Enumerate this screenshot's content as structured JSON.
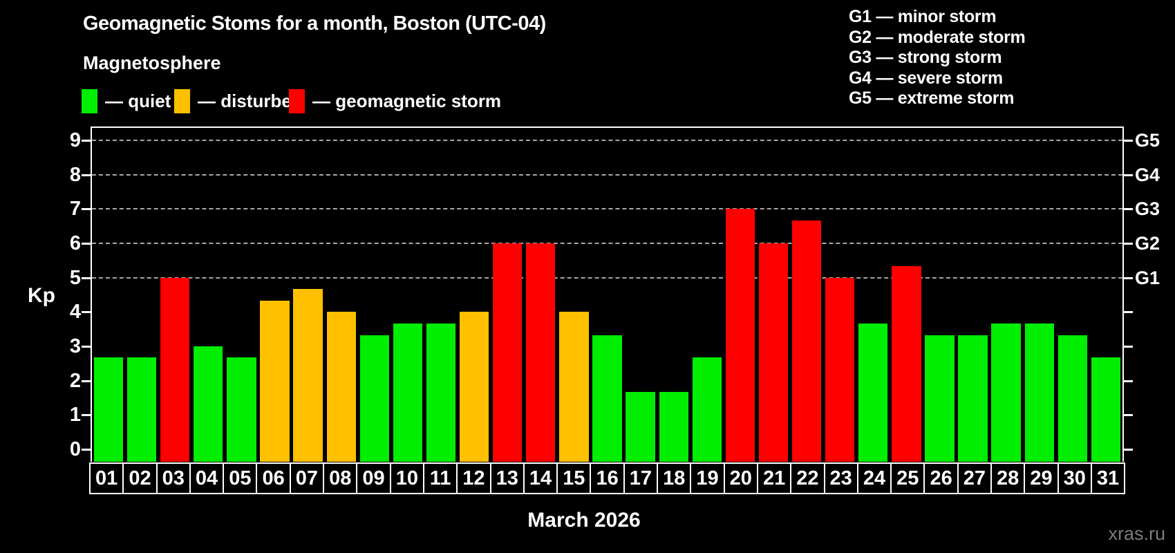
{
  "header": {
    "title": "Geomagnetic Stoms for a month, Boston (UTC-04)",
    "subtitle": "Magnetosphere",
    "legend": [
      {
        "label": "— quiet",
        "state": "quiet"
      },
      {
        "label": "— disturbed",
        "state": "disturbed"
      },
      {
        "label": "— geomagnetic storm",
        "state": "storm"
      }
    ],
    "storm_scale": [
      "G1 — minor storm",
      "G2 — moderate storm",
      "G3 — strong storm",
      "G4 — severe storm",
      "G5 — extreme storm"
    ]
  },
  "colors": {
    "quiet": "#00ee00",
    "disturbed": "#ffc000",
    "storm": "#ff0000",
    "grid": "#a8a8a8",
    "axis": "#ffffff",
    "watermark": "#7d7d7d",
    "background": "#000000"
  },
  "chart_data": {
    "type": "bar",
    "title": "Geomagnetic Stoms for a month, Boston (UTC-04)",
    "ylabel": "Kp",
    "xlabel": "March 2026",
    "ylim": [
      0,
      9.4
    ],
    "grid": "dashed horizontal lines at Kp 5-9 (G1-G5 levels)",
    "legend_position": "top-left",
    "y_ticks": [
      0,
      1,
      2,
      3,
      4,
      5,
      6,
      7,
      8,
      9
    ],
    "grid_levels": [
      5,
      6,
      7,
      8,
      9
    ],
    "right_axis": [
      {
        "label": "G1",
        "value": 5
      },
      {
        "label": "G2",
        "value": 6
      },
      {
        "label": "G3",
        "value": 7
      },
      {
        "label": "G4",
        "value": 8
      },
      {
        "label": "G5",
        "value": 9
      }
    ],
    "categories": [
      "01",
      "02",
      "03",
      "04",
      "05",
      "06",
      "07",
      "08",
      "09",
      "10",
      "11",
      "12",
      "13",
      "14",
      "15",
      "16",
      "17",
      "18",
      "19",
      "20",
      "21",
      "22",
      "23",
      "24",
      "25",
      "26",
      "27",
      "28",
      "29",
      "30",
      "31"
    ],
    "values": [
      2.67,
      2.67,
      5.0,
      3.0,
      2.67,
      4.33,
      4.67,
      4.0,
      3.33,
      3.67,
      3.67,
      4.0,
      6.0,
      6.0,
      4.0,
      3.33,
      1.67,
      1.67,
      2.67,
      7.0,
      6.0,
      6.67,
      5.0,
      3.67,
      5.33,
      3.33,
      3.33,
      3.67,
      3.67,
      3.33,
      2.67
    ],
    "states": [
      "quiet",
      "quiet",
      "storm",
      "quiet",
      "quiet",
      "disturbed",
      "disturbed",
      "disturbed",
      "quiet",
      "quiet",
      "quiet",
      "disturbed",
      "storm",
      "storm",
      "disturbed",
      "quiet",
      "quiet",
      "quiet",
      "quiet",
      "storm",
      "storm",
      "storm",
      "storm",
      "quiet",
      "storm",
      "quiet",
      "quiet",
      "quiet",
      "quiet",
      "quiet",
      "quiet"
    ]
  },
  "footer": {
    "month_label": "March 2026",
    "watermark": "xras.ru"
  }
}
